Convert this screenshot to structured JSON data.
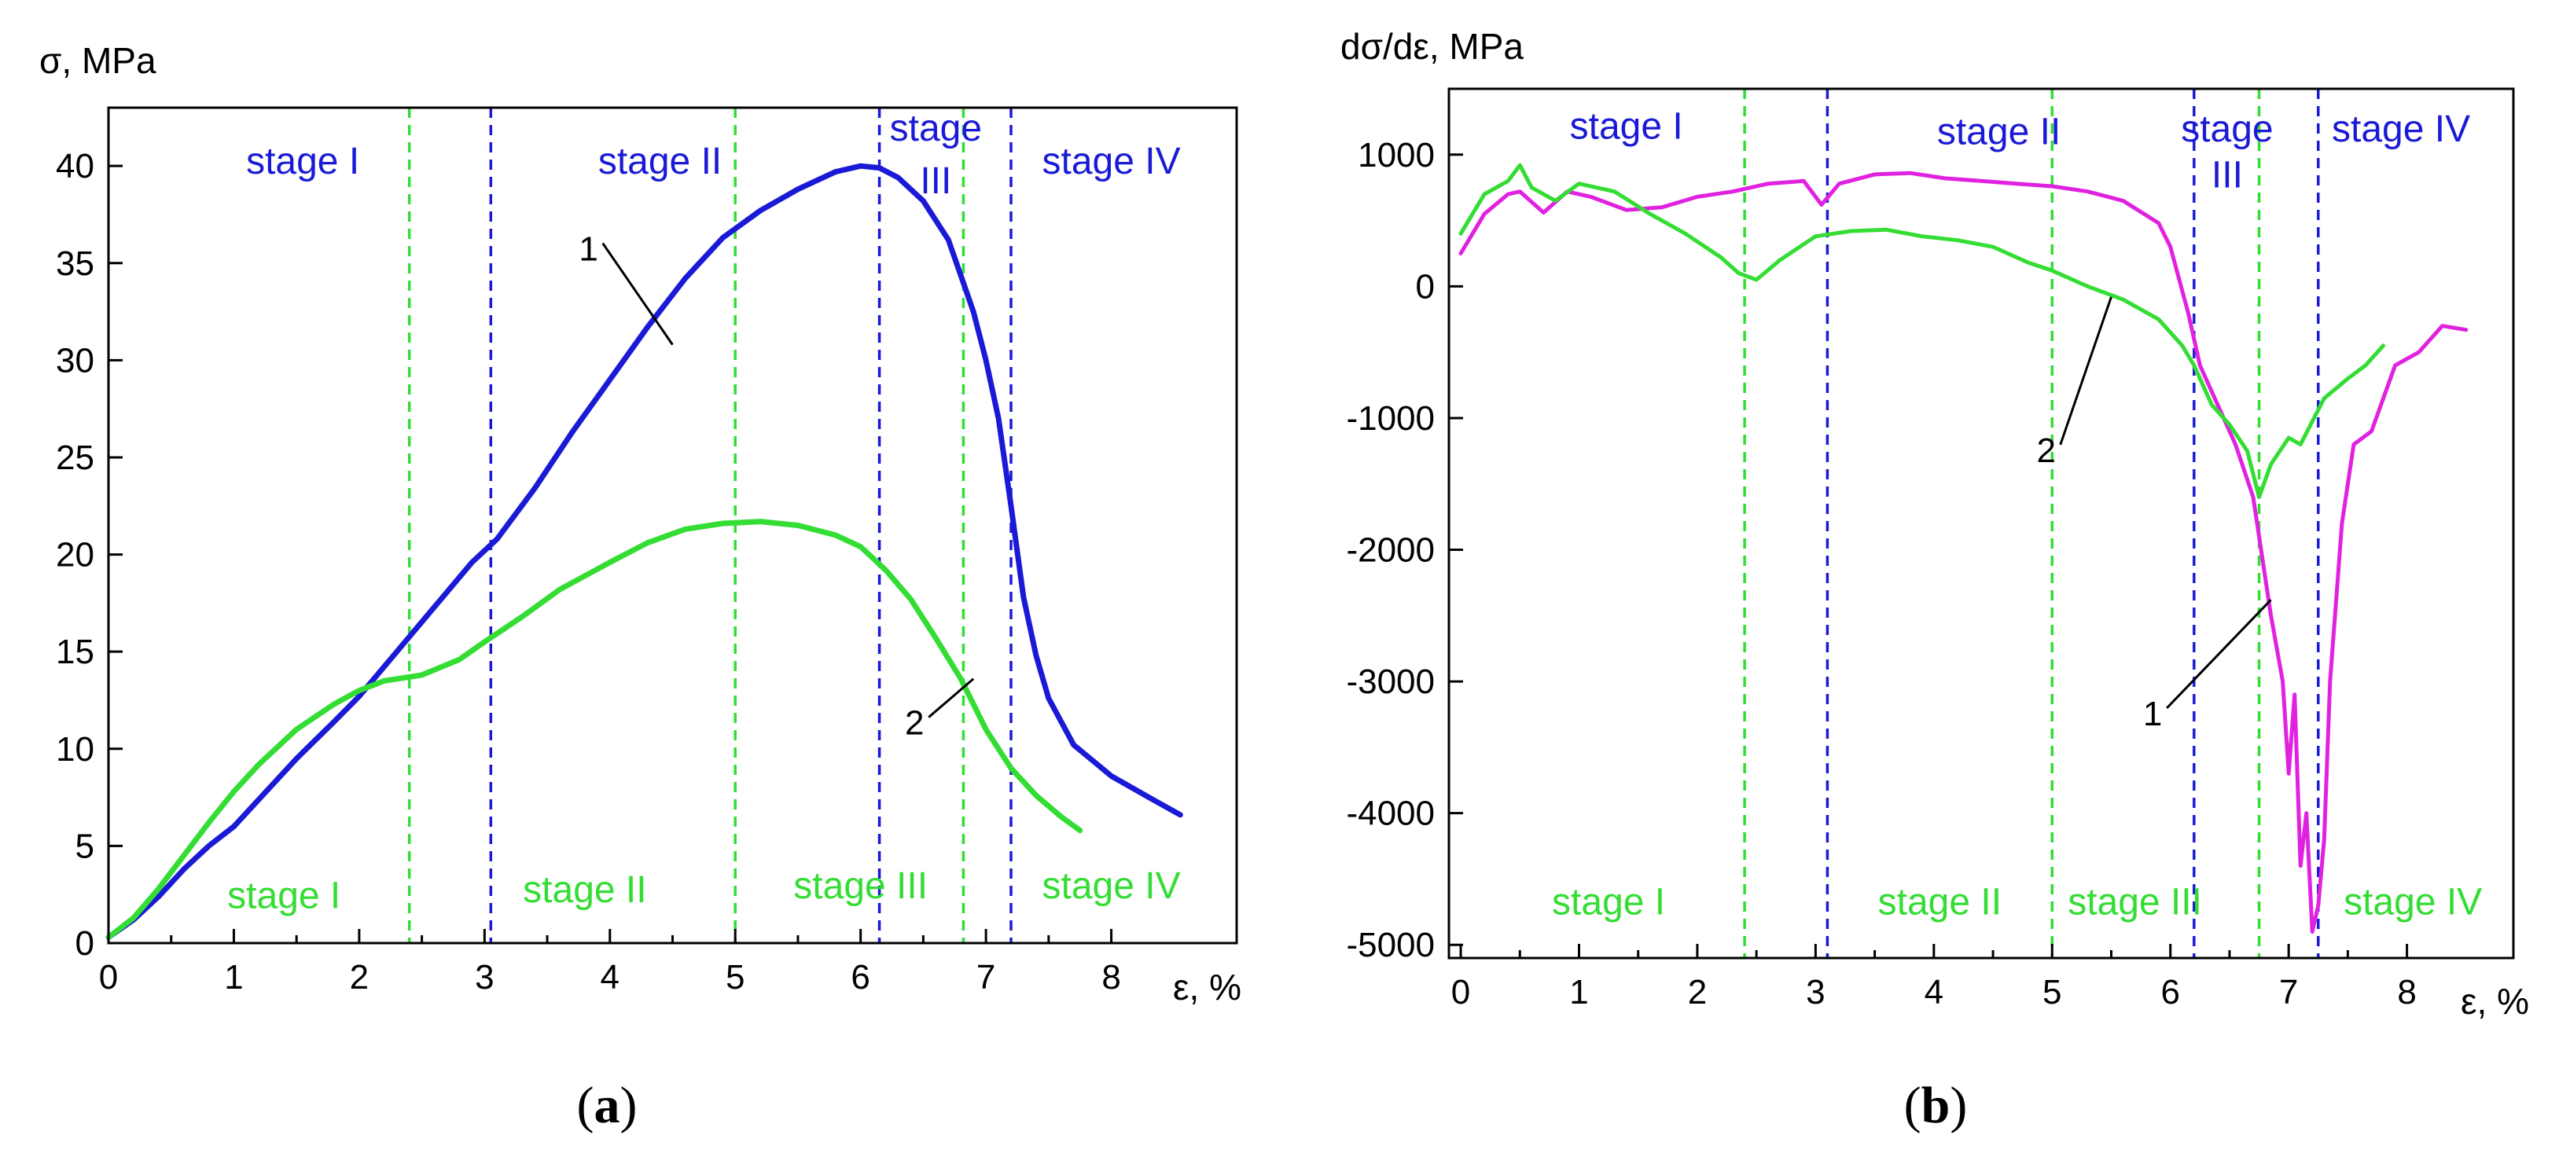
{
  "colors": {
    "blue": "#1a1ad6",
    "green": "#33dd33",
    "magenta": "#e022e0",
    "axis": "#000000"
  },
  "chart_data": [
    {
      "id": "a",
      "type": "line",
      "panel_label": {
        "open": "(",
        "letter": "a",
        "close": ")"
      },
      "ylabel": "σ, MPa",
      "xlabel": "ε, %",
      "xlim": [
        0,
        9
      ],
      "ylim": [
        0,
        43
      ],
      "xticks": [
        0,
        1,
        2,
        3,
        4,
        5,
        6,
        7,
        8
      ],
      "yticks": [
        0,
        5,
        10,
        15,
        20,
        25,
        30,
        35,
        40
      ],
      "series": [
        {
          "name": "1",
          "color_key": "blue",
          "x": [
            0,
            0.2,
            0.4,
            0.6,
            0.8,
            1.0,
            1.2,
            1.5,
            1.8,
            2.0,
            2.3,
            2.6,
            2.9,
            3.1,
            3.4,
            3.7,
            4.0,
            4.3,
            4.6,
            4.9,
            5.2,
            5.5,
            5.8,
            6.0,
            6.15,
            6.3,
            6.5,
            6.7,
            6.9,
            7.0,
            7.1,
            7.2,
            7.3,
            7.4,
            7.5,
            7.7,
            8.0,
            8.3,
            8.55
          ],
          "y": [
            0.3,
            1.2,
            2.4,
            3.8,
            5.0,
            6.0,
            7.4,
            9.5,
            11.4,
            12.7,
            15.0,
            17.3,
            19.6,
            20.8,
            23.4,
            26.3,
            29.0,
            31.7,
            34.2,
            36.3,
            37.7,
            38.8,
            39.7,
            40.0,
            39.9,
            39.4,
            38.2,
            36.2,
            32.5,
            30.0,
            27.0,
            22.5,
            17.8,
            14.8,
            12.6,
            10.2,
            8.6,
            7.5,
            6.6
          ]
        },
        {
          "name": "2",
          "color_key": "green",
          "x": [
            0,
            0.2,
            0.4,
            0.6,
            0.8,
            1.0,
            1.2,
            1.5,
            1.8,
            2.0,
            2.2,
            2.5,
            2.8,
            3.0,
            3.3,
            3.6,
            4.0,
            4.3,
            4.6,
            4.9,
            5.2,
            5.5,
            5.8,
            6.0,
            6.2,
            6.4,
            6.6,
            6.8,
            7.0,
            7.2,
            7.4,
            7.6,
            7.75
          ],
          "y": [
            0.3,
            1.3,
            2.8,
            4.5,
            6.2,
            7.8,
            9.2,
            11.0,
            12.3,
            13.0,
            13.5,
            13.8,
            14.6,
            15.5,
            16.8,
            18.2,
            19.6,
            20.6,
            21.3,
            21.6,
            21.7,
            21.5,
            21.0,
            20.4,
            19.2,
            17.7,
            15.7,
            13.6,
            11.0,
            9.0,
            7.6,
            6.5,
            5.8
          ]
        }
      ],
      "vlines": [
        {
          "x": 2.4,
          "color_key": "green"
        },
        {
          "x": 3.05,
          "color_key": "blue"
        },
        {
          "x": 5.0,
          "color_key": "green"
        },
        {
          "x": 6.15,
          "color_key": "blue"
        },
        {
          "x": 6.82,
          "color_key": "green"
        },
        {
          "x": 7.2,
          "color_key": "blue"
        }
      ],
      "stage_labels": [
        {
          "text": "stage I",
          "color_key": "blue",
          "x": 1.55,
          "y": 39.6
        },
        {
          "text": "stage II",
          "color_key": "blue",
          "x": 4.4,
          "y": 39.6
        },
        {
          "text": "stage",
          "color_key": "blue",
          "x": 6.6,
          "y": 41.3
        },
        {
          "text": "III",
          "color_key": "blue",
          "x": 6.6,
          "y": 38.6
        },
        {
          "text": "stage IV",
          "color_key": "blue",
          "x": 8.0,
          "y": 39.6
        },
        {
          "text": "stage I",
          "color_key": "green",
          "x": 1.4,
          "y": 1.8
        },
        {
          "text": "stage II",
          "color_key": "green",
          "x": 3.8,
          "y": 2.1
        },
        {
          "text": "stage III",
          "color_key": "green",
          "x": 6.0,
          "y": 2.3
        },
        {
          "text": "stage IV",
          "color_key": "green",
          "x": 8.0,
          "y": 2.3
        }
      ],
      "annotations": [
        {
          "text": "1",
          "tip_x": 4.5,
          "tip_y": 30.8,
          "label_x": 3.83,
          "label_y": 35.7
        },
        {
          "text": "2",
          "tip_x": 6.9,
          "tip_y": 13.6,
          "label_x": 6.43,
          "label_y": 11.3
        }
      ]
    },
    {
      "id": "b",
      "type": "line",
      "panel_label": {
        "open": "(",
        "letter": "b",
        "close": ")"
      },
      "ylabel": "dσ/dε, MPa",
      "xlabel": "ε, %",
      "xlim": [
        -0.1,
        8.9
      ],
      "ylim": [
        -5100,
        1500
      ],
      "xticks": [
        0,
        1,
        2,
        3,
        4,
        5,
        6,
        7,
        8
      ],
      "yticks": [
        1000,
        0,
        -1000,
        -2000,
        -3000,
        -4000,
        -5000
      ],
      "series": [
        {
          "name": "1",
          "color_key": "magenta",
          "x": [
            0,
            0.2,
            0.4,
            0.5,
            0.7,
            0.9,
            1.1,
            1.4,
            1.7,
            2.0,
            2.3,
            2.6,
            2.9,
            3.05,
            3.2,
            3.5,
            3.8,
            4.1,
            4.4,
            4.7,
            5.0,
            5.3,
            5.6,
            5.9,
            6.0,
            6.15,
            6.25,
            6.4,
            6.55,
            6.7,
            6.85,
            6.95,
            7.0,
            7.05,
            7.1,
            7.15,
            7.2,
            7.25,
            7.3,
            7.35,
            7.45,
            7.55,
            7.7,
            7.9,
            8.1,
            8.3,
            8.5
          ],
          "y": [
            250,
            550,
            700,
            720,
            560,
            720,
            680,
            580,
            600,
            680,
            720,
            780,
            800,
            620,
            780,
            850,
            860,
            820,
            800,
            780,
            760,
            720,
            650,
            480,
            300,
            -200,
            -600,
            -900,
            -1200,
            -1600,
            -2500,
            -3000,
            -3700,
            -3100,
            -4400,
            -4000,
            -4900,
            -4700,
            -4200,
            -3000,
            -1800,
            -1200,
            -1100,
            -600,
            -500,
            -300,
            -330
          ]
        },
        {
          "name": "2",
          "color_key": "green",
          "x": [
            0,
            0.2,
            0.4,
            0.5,
            0.6,
            0.8,
            1.0,
            1.3,
            1.6,
            1.9,
            2.2,
            2.35,
            2.5,
            2.7,
            3.0,
            3.3,
            3.6,
            3.9,
            4.2,
            4.5,
            4.8,
            5.0,
            5.3,
            5.6,
            5.9,
            6.1,
            6.2,
            6.35,
            6.5,
            6.65,
            6.75,
            6.85,
            7.0,
            7.1,
            7.3,
            7.5,
            7.65,
            7.8
          ],
          "y": [
            400,
            700,
            800,
            920,
            750,
            650,
            780,
            720,
            550,
            400,
            220,
            100,
            50,
            200,
            380,
            420,
            430,
            380,
            350,
            300,
            180,
            120,
            0,
            -100,
            -250,
            -450,
            -600,
            -900,
            -1050,
            -1250,
            -1600,
            -1350,
            -1150,
            -1200,
            -850,
            -700,
            -600,
            -450
          ]
        }
      ],
      "vlines": [
        {
          "x": 2.4,
          "color_key": "green"
        },
        {
          "x": 3.1,
          "color_key": "blue"
        },
        {
          "x": 5.0,
          "color_key": "green"
        },
        {
          "x": 6.2,
          "color_key": "blue"
        },
        {
          "x": 6.75,
          "color_key": "green"
        },
        {
          "x": 7.25,
          "color_key": "blue"
        }
      ],
      "stage_labels": [
        {
          "text": "stage I",
          "color_key": "blue",
          "x": 1.4,
          "y": 1120
        },
        {
          "text": "stage II",
          "color_key": "blue",
          "x": 4.55,
          "y": 1080
        },
        {
          "text": "stage",
          "color_key": "blue",
          "x": 6.48,
          "y": 1100
        },
        {
          "text": "III",
          "color_key": "blue",
          "x": 6.48,
          "y": 750
        },
        {
          "text": "stage IV",
          "color_key": "blue",
          "x": 7.95,
          "y": 1100
        },
        {
          "text": "stage I",
          "color_key": "green",
          "x": 1.25,
          "y": -4770
        },
        {
          "text": "stage II",
          "color_key": "green",
          "x": 4.05,
          "y": -4770
        },
        {
          "text": "stage III",
          "color_key": "green",
          "x": 5.7,
          "y": -4770
        },
        {
          "text": "stage IV",
          "color_key": "green",
          "x": 8.05,
          "y": -4770
        }
      ],
      "annotations": [
        {
          "text": "1",
          "tip_x": 6.85,
          "tip_y": -2380,
          "label_x": 5.85,
          "label_y": -3250
        },
        {
          "text": "2",
          "tip_x": 5.5,
          "tip_y": -80,
          "label_x": 4.95,
          "label_y": -1250
        }
      ]
    }
  ]
}
